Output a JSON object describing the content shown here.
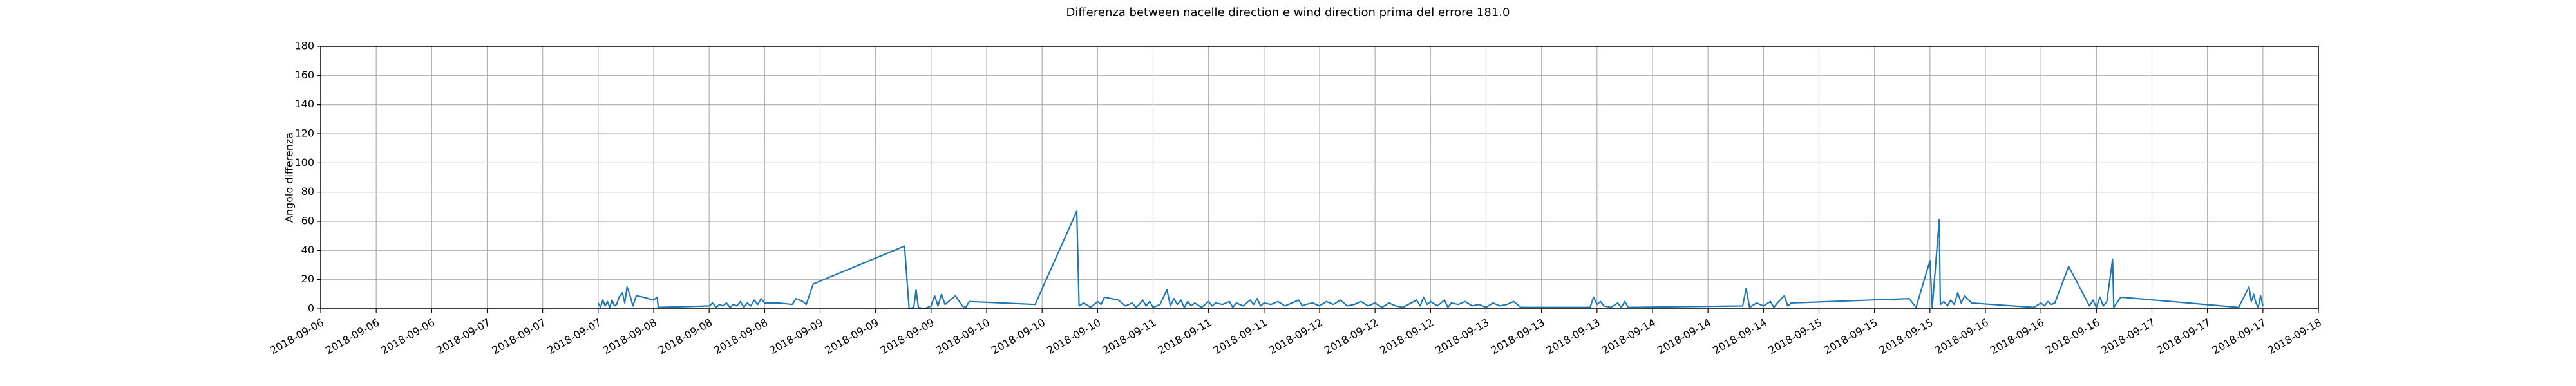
{
  "chart_data": {
    "type": "line",
    "title": "Differenza between nacelle direction e wind direction prima del errore 181.0",
    "y_label": "Angolo differenza",
    "grid": true,
    "xlim": [
      "2018-09-06T00:00",
      "2018-09-18T00:00"
    ],
    "ylim": [
      0,
      180
    ],
    "yticks": [
      0,
      20,
      40,
      60,
      80,
      100,
      120,
      140,
      160,
      180
    ],
    "xticks": [
      {
        "value": "2018-09-06T00:00",
        "label": "2018-09-06"
      },
      {
        "value": "2018-09-06T08:00",
        "label": "2018-09-06"
      },
      {
        "value": "2018-09-06T16:00",
        "label": "2018-09-06"
      },
      {
        "value": "2018-09-07T00:00",
        "label": "2018-09-07"
      },
      {
        "value": "2018-09-07T08:00",
        "label": "2018-09-07"
      },
      {
        "value": "2018-09-07T16:00",
        "label": "2018-09-07"
      },
      {
        "value": "2018-09-08T00:00",
        "label": "2018-09-08"
      },
      {
        "value": "2018-09-08T08:00",
        "label": "2018-09-08"
      },
      {
        "value": "2018-09-08T16:00",
        "label": "2018-09-08"
      },
      {
        "value": "2018-09-09T00:00",
        "label": "2018-09-09"
      },
      {
        "value": "2018-09-09T08:00",
        "label": "2018-09-09"
      },
      {
        "value": "2018-09-09T16:00",
        "label": "2018-09-09"
      },
      {
        "value": "2018-09-10T00:00",
        "label": "2018-09-10"
      },
      {
        "value": "2018-09-10T08:00",
        "label": "2018-09-10"
      },
      {
        "value": "2018-09-10T16:00",
        "label": "2018-09-10"
      },
      {
        "value": "2018-09-11T00:00",
        "label": "2018-09-11"
      },
      {
        "value": "2018-09-11T08:00",
        "label": "2018-09-11"
      },
      {
        "value": "2018-09-11T16:00",
        "label": "2018-09-11"
      },
      {
        "value": "2018-09-12T00:00",
        "label": "2018-09-12"
      },
      {
        "value": "2018-09-12T08:00",
        "label": "2018-09-12"
      },
      {
        "value": "2018-09-12T16:00",
        "label": "2018-09-12"
      },
      {
        "value": "2018-09-13T00:00",
        "label": "2018-09-13"
      },
      {
        "value": "2018-09-13T08:00",
        "label": "2018-09-13"
      },
      {
        "value": "2018-09-13T16:00",
        "label": "2018-09-13"
      },
      {
        "value": "2018-09-14T00:00",
        "label": "2018-09-14"
      },
      {
        "value": "2018-09-14T08:00",
        "label": "2018-09-14"
      },
      {
        "value": "2018-09-14T16:00",
        "label": "2018-09-14"
      },
      {
        "value": "2018-09-15T00:00",
        "label": "2018-09-15"
      },
      {
        "value": "2018-09-15T08:00",
        "label": "2018-09-15"
      },
      {
        "value": "2018-09-15T16:00",
        "label": "2018-09-15"
      },
      {
        "value": "2018-09-16T00:00",
        "label": "2018-09-16"
      },
      {
        "value": "2018-09-16T08:00",
        "label": "2018-09-16"
      },
      {
        "value": "2018-09-16T16:00",
        "label": "2018-09-16"
      },
      {
        "value": "2018-09-17T00:00",
        "label": "2018-09-17"
      },
      {
        "value": "2018-09-17T08:00",
        "label": "2018-09-17"
      },
      {
        "value": "2018-09-17T16:00",
        "label": "2018-09-17"
      },
      {
        "value": "2018-09-18T00:00",
        "label": "2018-09-18"
      }
    ],
    "color": "#1f77b4",
    "x": [
      "2018-09-07T16:00",
      "2018-09-07T16:20",
      "2018-09-07T16:40",
      "2018-09-07T17:00",
      "2018-09-07T17:20",
      "2018-09-07T17:40",
      "2018-09-07T18:00",
      "2018-09-07T18:20",
      "2018-09-07T18:40",
      "2018-09-07T19:00",
      "2018-09-07T19:30",
      "2018-09-07T19:50",
      "2018-09-07T20:10",
      "2018-09-07T20:40",
      "2018-09-07T21:00",
      "2018-09-07T21:30",
      "2018-09-07T22:30",
      "2018-09-08T00:00",
      "2018-09-08T00:30",
      "2018-09-08T00:40",
      "2018-09-08T08:00",
      "2018-09-08T08:30",
      "2018-09-08T09:00",
      "2018-09-08T09:30",
      "2018-09-08T10:00",
      "2018-09-08T10:30",
      "2018-09-08T11:00",
      "2018-09-08T11:30",
      "2018-09-08T12:00",
      "2018-09-08T12:30",
      "2018-09-08T13:00",
      "2018-09-08T13:30",
      "2018-09-08T14:00",
      "2018-09-08T14:30",
      "2018-09-08T15:00",
      "2018-09-08T15:30",
      "2018-09-08T16:00",
      "2018-09-08T18:00",
      "2018-09-08T20:00",
      "2018-09-08T20:30",
      "2018-09-08T21:30",
      "2018-09-08T22:00",
      "2018-09-08T23:00",
      "2018-09-09T12:10",
      "2018-09-09T12:50",
      "2018-09-09T13:30",
      "2018-09-09T13:50",
      "2018-09-09T14:10",
      "2018-09-09T15:00",
      "2018-09-09T16:00",
      "2018-09-09T16:30",
      "2018-09-09T17:00",
      "2018-09-09T17:30",
      "2018-09-09T18:00",
      "2018-09-09T19:30",
      "2018-09-09T20:30",
      "2018-09-09T21:00",
      "2018-09-09T21:30",
      "2018-09-10T07:00",
      "2018-09-10T13:00",
      "2018-09-10T13:20",
      "2018-09-10T14:00",
      "2018-09-10T15:00",
      "2018-09-10T16:00",
      "2018-09-10T16:30",
      "2018-09-10T17:00",
      "2018-09-10T18:00",
      "2018-09-10T19:00",
      "2018-09-10T20:00",
      "2018-09-10T21:00",
      "2018-09-10T21:30",
      "2018-09-10T22:00",
      "2018-09-10T22:30",
      "2018-09-10T23:00",
      "2018-09-10T23:30",
      "2018-09-11T00:00",
      "2018-09-11T01:00",
      "2018-09-11T02:00",
      "2018-09-11T02:30",
      "2018-09-11T03:00",
      "2018-09-11T03:30",
      "2018-09-11T04:00",
      "2018-09-11T04:30",
      "2018-09-11T05:00",
      "2018-09-11T05:30",
      "2018-09-11T06:00",
      "2018-09-11T07:00",
      "2018-09-11T08:00",
      "2018-09-11T08:30",
      "2018-09-11T09:00",
      "2018-09-11T10:00",
      "2018-09-11T11:00",
      "2018-09-11T11:30",
      "2018-09-11T12:00",
      "2018-09-11T13:00",
      "2018-09-11T14:00",
      "2018-09-11T14:30",
      "2018-09-11T15:00",
      "2018-09-11T15:30",
      "2018-09-11T16:00",
      "2018-09-11T17:00",
      "2018-09-11T18:00",
      "2018-09-11T19:00",
      "2018-09-11T20:00",
      "2018-09-11T21:00",
      "2018-09-11T21:30",
      "2018-09-11T22:00",
      "2018-09-11T23:00",
      "2018-09-12T00:00",
      "2018-09-12T01:00",
      "2018-09-12T02:00",
      "2018-09-12T03:00",
      "2018-09-12T04:00",
      "2018-09-12T05:00",
      "2018-09-12T06:00",
      "2018-09-12T07:00",
      "2018-09-12T08:00",
      "2018-09-12T09:00",
      "2018-09-12T10:00",
      "2018-09-12T11:00",
      "2018-09-12T12:00",
      "2018-09-12T14:00",
      "2018-09-12T14:30",
      "2018-09-12T15:00",
      "2018-09-12T15:30",
      "2018-09-12T16:00",
      "2018-09-12T17:00",
      "2018-09-12T18:00",
      "2018-09-12T18:30",
      "2018-09-12T19:00",
      "2018-09-12T20:00",
      "2018-09-12T21:00",
      "2018-09-12T22:00",
      "2018-09-12T23:00",
      "2018-09-13T00:00",
      "2018-09-13T01:00",
      "2018-09-13T02:00",
      "2018-09-13T03:00",
      "2018-09-13T04:00",
      "2018-09-13T05:00",
      "2018-09-13T15:00",
      "2018-09-13T15:30",
      "2018-09-13T16:00",
      "2018-09-13T16:30",
      "2018-09-13T17:00",
      "2018-09-13T18:00",
      "2018-09-13T19:00",
      "2018-09-13T19:30",
      "2018-09-13T20:00",
      "2018-09-13T20:30",
      "2018-09-14T13:00",
      "2018-09-14T13:30",
      "2018-09-14T14:00",
      "2018-09-14T15:00",
      "2018-09-14T16:00",
      "2018-09-14T17:00",
      "2018-09-14T17:30",
      "2018-09-14T18:00",
      "2018-09-14T19:00",
      "2018-09-14T19:30",
      "2018-09-14T20:00",
      "2018-09-15T13:00",
      "2018-09-15T14:00",
      "2018-09-15T16:00",
      "2018-09-15T16:20",
      "2018-09-15T17:20",
      "2018-09-15T17:30",
      "2018-09-15T18:00",
      "2018-09-15T18:30",
      "2018-09-15T19:00",
      "2018-09-15T19:30",
      "2018-09-15T20:00",
      "2018-09-15T20:30",
      "2018-09-15T21:00",
      "2018-09-15T22:00",
      "2018-09-16T07:00",
      "2018-09-16T08:00",
      "2018-09-16T08:30",
      "2018-09-16T09:00",
      "2018-09-16T09:30",
      "2018-09-16T10:00",
      "2018-09-16T12:00",
      "2018-09-16T15:00",
      "2018-09-16T15:30",
      "2018-09-16T16:00",
      "2018-09-16T16:30",
      "2018-09-16T17:00",
      "2018-09-16T17:30",
      "2018-09-16T18:20",
      "2018-09-16T18:30",
      "2018-09-16T19:30",
      "2018-09-17T12:30",
      "2018-09-17T14:00",
      "2018-09-17T14:20",
      "2018-09-17T14:40",
      "2018-09-17T15:00",
      "2018-09-17T15:20",
      "2018-09-17T15:40",
      "2018-09-17T16:00"
    ],
    "values": [
      4,
      1,
      6,
      2,
      5,
      1,
      6,
      2,
      3,
      8,
      11,
      4,
      15,
      8,
      2,
      9,
      8,
      6,
      8,
      1,
      2,
      4,
      1,
      3,
      2,
      4,
      1,
      3,
      2,
      5,
      1,
      4,
      2,
      6,
      3,
      7,
      4,
      4,
      3,
      7,
      5,
      3,
      17,
      43,
      0,
      1,
      13,
      1,
      0,
      2,
      9,
      2,
      10,
      3,
      9,
      2,
      1,
      5,
      3,
      67,
      2,
      4,
      1,
      5,
      3,
      8,
      7,
      6,
      2,
      4,
      1,
      3,
      6,
      2,
      5,
      1,
      3,
      13,
      2,
      7,
      3,
      6,
      1,
      5,
      2,
      4,
      1,
      5,
      2,
      4,
      3,
      5,
      1,
      4,
      2,
      6,
      3,
      7,
      2,
      4,
      3,
      5,
      2,
      4,
      6,
      2,
      3,
      4,
      2,
      5,
      3,
      6,
      2,
      3,
      5,
      2,
      4,
      1,
      4,
      2,
      1,
      6,
      2,
      8,
      3,
      5,
      2,
      6,
      1,
      4,
      3,
      5,
      2,
      3,
      1,
      4,
      2,
      3,
      5,
      1,
      1,
      8,
      3,
      5,
      2,
      1,
      4,
      1,
      5,
      1,
      2,
      14,
      1,
      4,
      2,
      5,
      1,
      4,
      9,
      2,
      4,
      7,
      1,
      33,
      1,
      61,
      3,
      5,
      2,
      6,
      3,
      11,
      4,
      9,
      4,
      1,
      4,
      2,
      5,
      3,
      4,
      29,
      2,
      6,
      1,
      8,
      2,
      5,
      34,
      1,
      8,
      1,
      15,
      5,
      10,
      4,
      1,
      9,
      2
    ]
  }
}
